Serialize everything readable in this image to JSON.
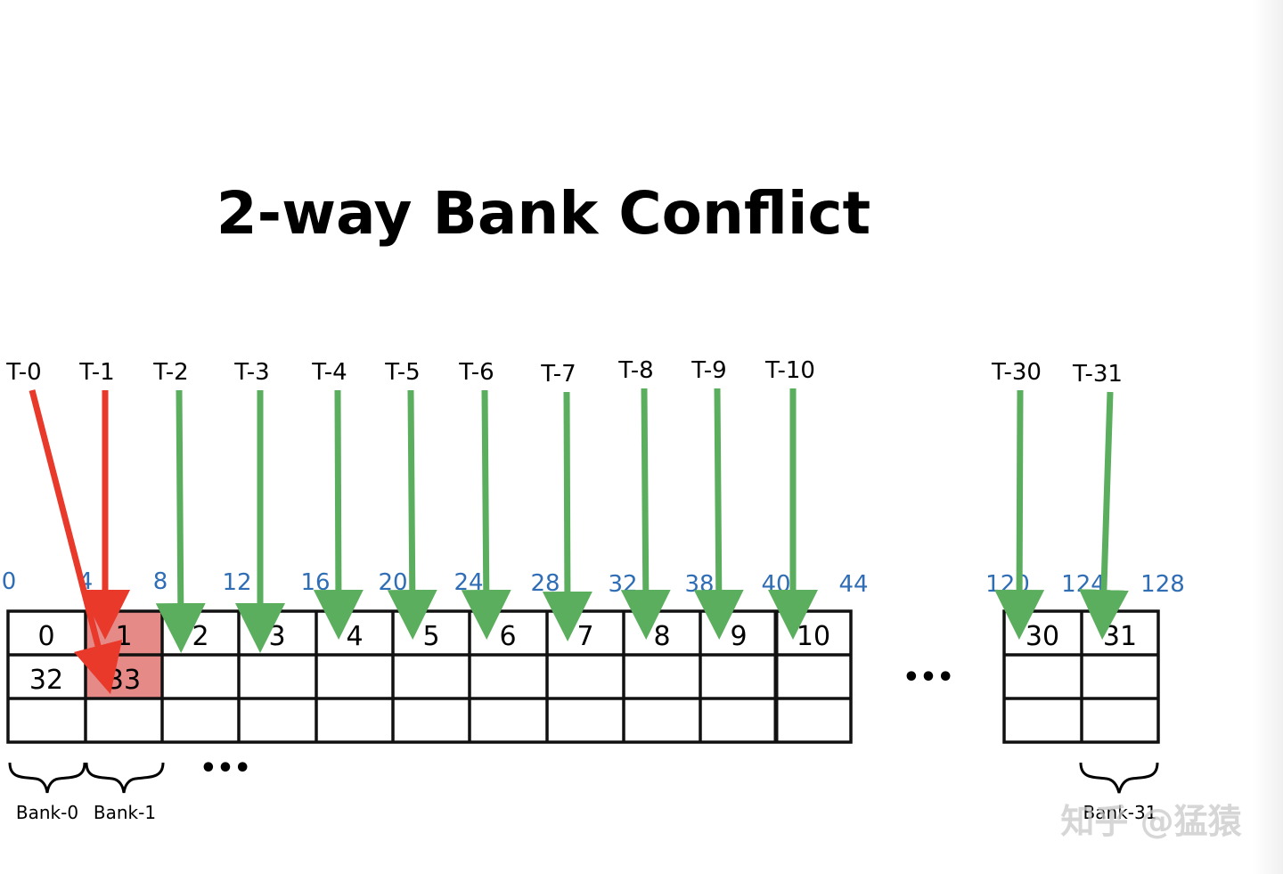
{
  "title": "2-way Bank Conflict",
  "threads": [
    "T-0",
    "T-1",
    "T-2",
    "T-3",
    "T-4",
    "T-5",
    "T-6",
    "T-7",
    "T-8",
    "T-9",
    "T-10",
    "T-30",
    "T-31"
  ],
  "address_labels": [
    "0",
    "4",
    "8",
    "12",
    "16",
    "20",
    "24",
    "28",
    "32",
    "38",
    "40",
    "44",
    "120",
    "124",
    "128"
  ],
  "cells_main": {
    "row1": [
      "0",
      "1",
      "2",
      "3",
      "4",
      "5",
      "6",
      "7",
      "8",
      "9",
      "10"
    ],
    "row2": [
      "32",
      "33"
    ]
  },
  "cells_right": {
    "row1": [
      "30",
      "31"
    ]
  },
  "highlighted_cell": "1",
  "ellipsis_middle": "•••",
  "ellipsis_bottom": "•••",
  "bank_labels": [
    "Bank-0",
    "Bank-1",
    "Bank-31"
  ],
  "watermark": "知乎 @猛猿",
  "colors": {
    "conflict_arrow": "#e8392a",
    "ok_arrow": "#5aae5d",
    "highlight": "#e68a88",
    "address_text": "#2f6db5",
    "grid": "#111111"
  }
}
